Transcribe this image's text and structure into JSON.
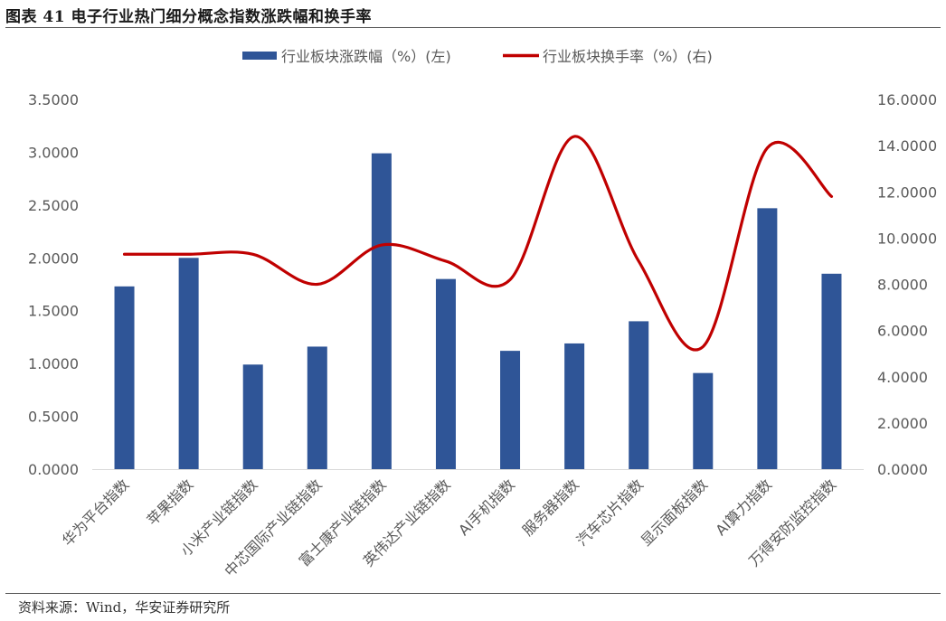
{
  "title": "图表 41 电子行业热门细分概念指数涨跌幅和换手率",
  "source": "资料来源：Wind，华安证券研究所",
  "colors": {
    "bar": "#2F5597",
    "line": "#C00000",
    "text": "#595959"
  },
  "chart_data": {
    "type": "bar+line",
    "categories": [
      "华为平台指数",
      "苹果指数",
      "小米产业链指数",
      "中芯国际产业链指数",
      "富士康产业链指数",
      "英伟达产业链指数",
      "AI手机指数",
      "服务器指数",
      "汽车芯片指数",
      "显示面板指数",
      "AI算力指数",
      "万得安防监控指数"
    ],
    "series": [
      {
        "name": "行业板块涨跌幅（%）(左)",
        "type": "bar",
        "axis": "left",
        "values": [
          1.73,
          2.0,
          0.99,
          1.16,
          2.99,
          1.8,
          1.12,
          1.19,
          1.4,
          0.91,
          2.47,
          1.85
        ]
      },
      {
        "name": "行业板块换手率（%）(右)",
        "type": "line",
        "axis": "right",
        "smooth": true,
        "values": [
          9.3,
          9.3,
          9.3,
          8.0,
          9.7,
          9.0,
          8.2,
          14.4,
          9.0,
          5.3,
          13.9,
          11.8
        ]
      }
    ],
    "y_left": {
      "min": 0,
      "max": 3.5,
      "step": 0.5,
      "ticks": [
        "0.0000",
        "0.5000",
        "1.0000",
        "1.5000",
        "2.0000",
        "2.5000",
        "3.0000",
        "3.5000"
      ]
    },
    "y_right": {
      "min": 0,
      "max": 16,
      "step": 2,
      "ticks": [
        "0.0000",
        "2.0000",
        "4.0000",
        "6.0000",
        "8.0000",
        "10.0000",
        "12.0000",
        "14.0000",
        "16.0000"
      ]
    },
    "legend_position": "top-center",
    "grid": false
  }
}
